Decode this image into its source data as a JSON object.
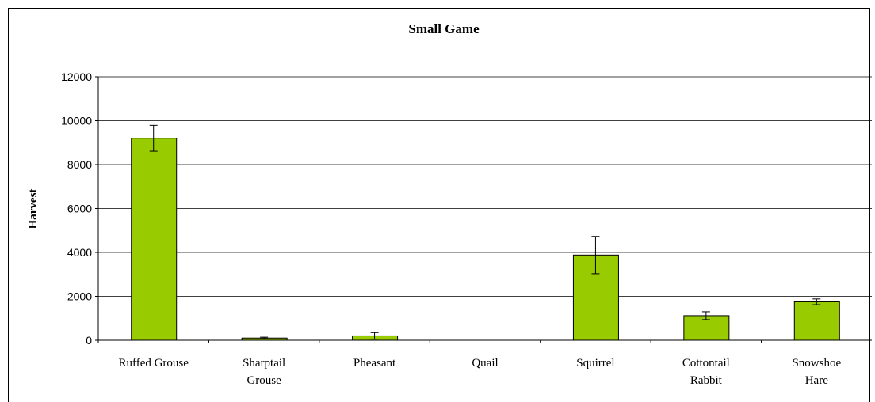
{
  "chart_data": {
    "type": "bar",
    "title": "Small Game",
    "y_label": "Harvest",
    "categories": [
      "Ruffed Grouse",
      "Sharptail\nGrouse",
      "Pheasant",
      "Quail",
      "Squirrel",
      "Cottontail\nRabbit",
      "Snowshoe\nHare"
    ],
    "values": [
      9200,
      100,
      200,
      0,
      3880,
      1120,
      1750
    ],
    "errors": [
      590,
      40,
      150,
      0,
      850,
      180,
      130
    ],
    "color": "#99cc00",
    "ylim": [
      0,
      12000
    ],
    "yticks": [
      0,
      2000,
      4000,
      6000,
      8000,
      10000,
      12000
    ],
    "grid": true
  }
}
